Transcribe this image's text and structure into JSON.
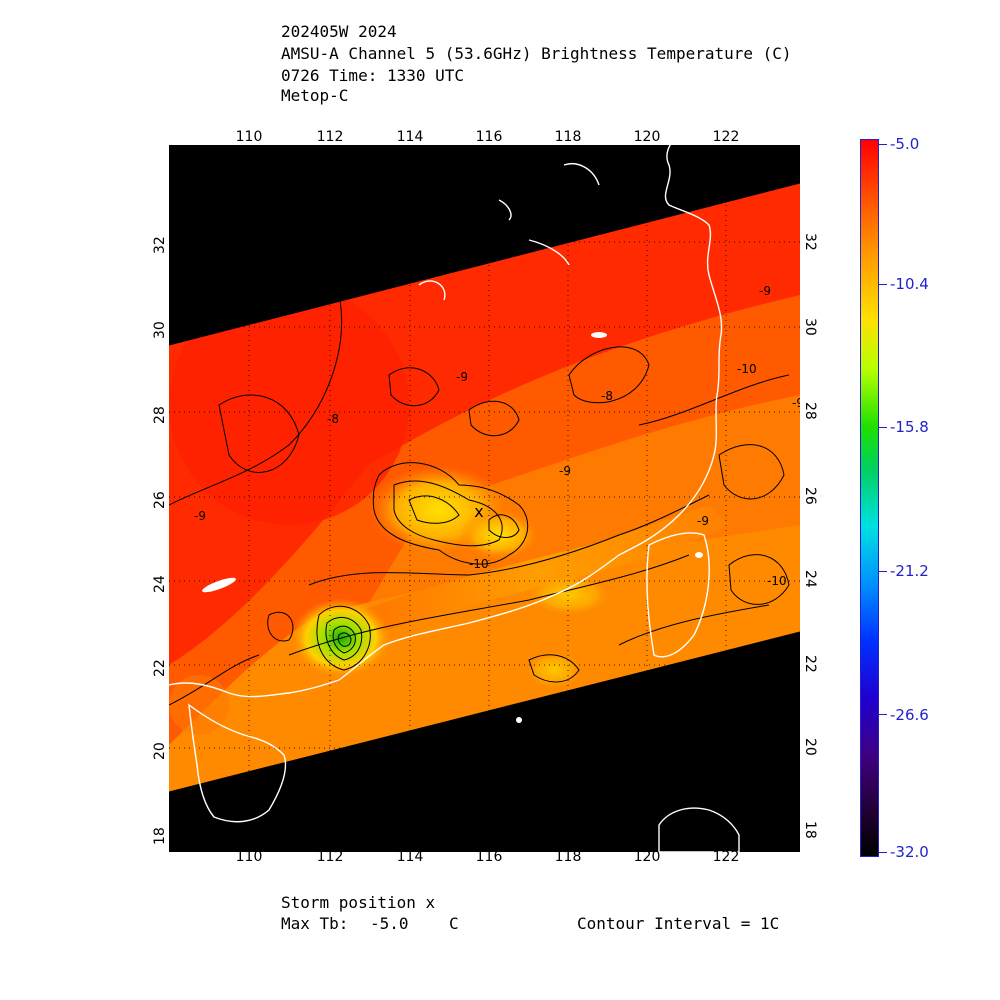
{
  "header": {
    "line1": "202405W 2024",
    "line2": "AMSU-A Channel 5 (53.6GHz) Brightness Temperature (C)",
    "line3": "0726 Time: 1330 UTC",
    "line4": "Metop-C"
  },
  "map": {
    "lon_ticks": [
      "110",
      "112",
      "114",
      "116",
      "118",
      "120",
      "122"
    ],
    "lat_ticks": [
      "18",
      "20",
      "22",
      "24",
      "26",
      "28",
      "30",
      "32"
    ],
    "contour_labels": [
      "-8",
      "-9",
      "-8",
      "-9",
      "-9",
      "-10",
      "-9",
      "-10",
      "-9",
      "-10",
      "-9"
    ],
    "storm_marker": "x"
  },
  "colorbar": {
    "ticks": [
      "-5.0",
      "-10.4",
      "-15.8",
      "-21.2",
      "-26.6",
      "-32.0"
    ]
  },
  "footer": {
    "storm_position": "Storm position x",
    "max_tb_label": "Max Tb:",
    "max_tb_value": "-5.0",
    "max_tb_unit": "C",
    "contour_interval": "Contour Interval = 1C"
  },
  "colors": {
    "swath_warm": "#ff2000",
    "swath_mid": "#ff8000",
    "swath_yellow": "#ffd800",
    "cold_core": "#20c000",
    "background": "#000000",
    "coastline": "#ffffff",
    "tick_label_blue": "#2222cc"
  }
}
